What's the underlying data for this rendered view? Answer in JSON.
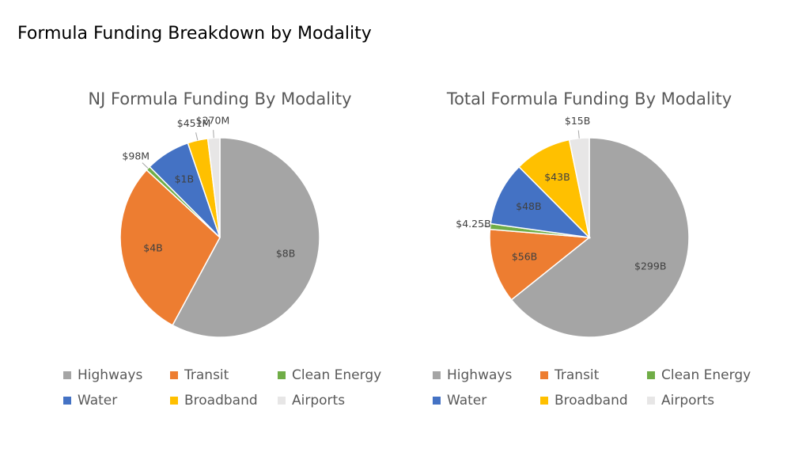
{
  "page": {
    "title": "Formula Funding Breakdown by Modality"
  },
  "chart_data": [
    {
      "type": "pie",
      "title": "NJ Formula Funding By Modality",
      "categories": [
        "Highways",
        "Transit",
        "Clean Energy",
        "Water",
        "Broadband",
        "Airports"
      ],
      "values": [
        8,
        4,
        0.098,
        1,
        0.451,
        0.27
      ],
      "value_labels": [
        "$8B",
        "$4B",
        "$98M",
        "$1B",
        "$451M",
        "$270M"
      ],
      "colors": [
        "#a5a5a5",
        "#ed7d31",
        "#70ad47",
        "#4472c4",
        "#ffc000",
        "#e7e6e6"
      ],
      "legend": "bottom"
    },
    {
      "type": "pie",
      "title": "Total Formula Funding By Modality",
      "categories": [
        "Highways",
        "Transit",
        "Clean Energy",
        "Water",
        "Broadband",
        "Airports"
      ],
      "values": [
        299,
        56,
        4.25,
        48,
        43,
        15
      ],
      "value_labels": [
        "$299B",
        "$56B",
        "$4.25B",
        "$48B",
        "$43B",
        "$15B"
      ],
      "colors": [
        "#a5a5a5",
        "#ed7d31",
        "#70ad47",
        "#4472c4",
        "#ffc000",
        "#e7e6e6"
      ],
      "legend": "bottom"
    }
  ]
}
